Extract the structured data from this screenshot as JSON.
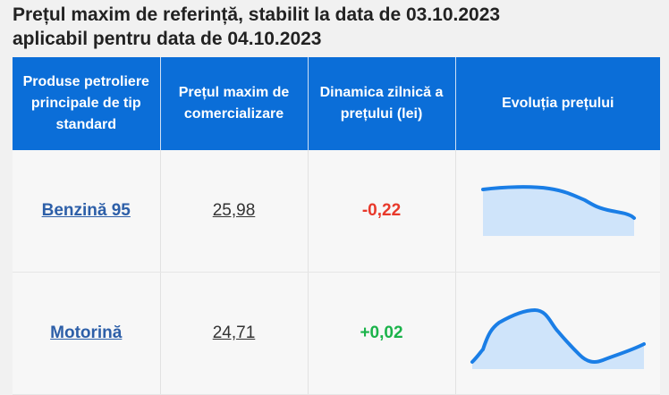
{
  "title": {
    "line1": "Prețul maxim de referință, stabilit la data de 03.10.2023",
    "line2": "aplicabil pentru data de 04.10.2023"
  },
  "table": {
    "headers": [
      "Produse petroliere principale de tip standard",
      "Prețul maxim de comercializare",
      "Dinamica zilnică a prețului (lei)",
      "Evoluția prețului"
    ],
    "rows": [
      {
        "product": "Benzină 95",
        "price": "25,98",
        "change": "-0,22",
        "trend": "down"
      },
      {
        "product": "Motorină",
        "price": "24,71",
        "change": "+0,02",
        "trend": "up"
      }
    ]
  },
  "colors": {
    "header_bg": "#0b6ed8",
    "negative": "#e8392b",
    "positive": "#1bb34a",
    "link": "#2d5fa8",
    "spark_line": "#1a7ee6"
  },
  "icons": [
    "sparkline-icon"
  ]
}
